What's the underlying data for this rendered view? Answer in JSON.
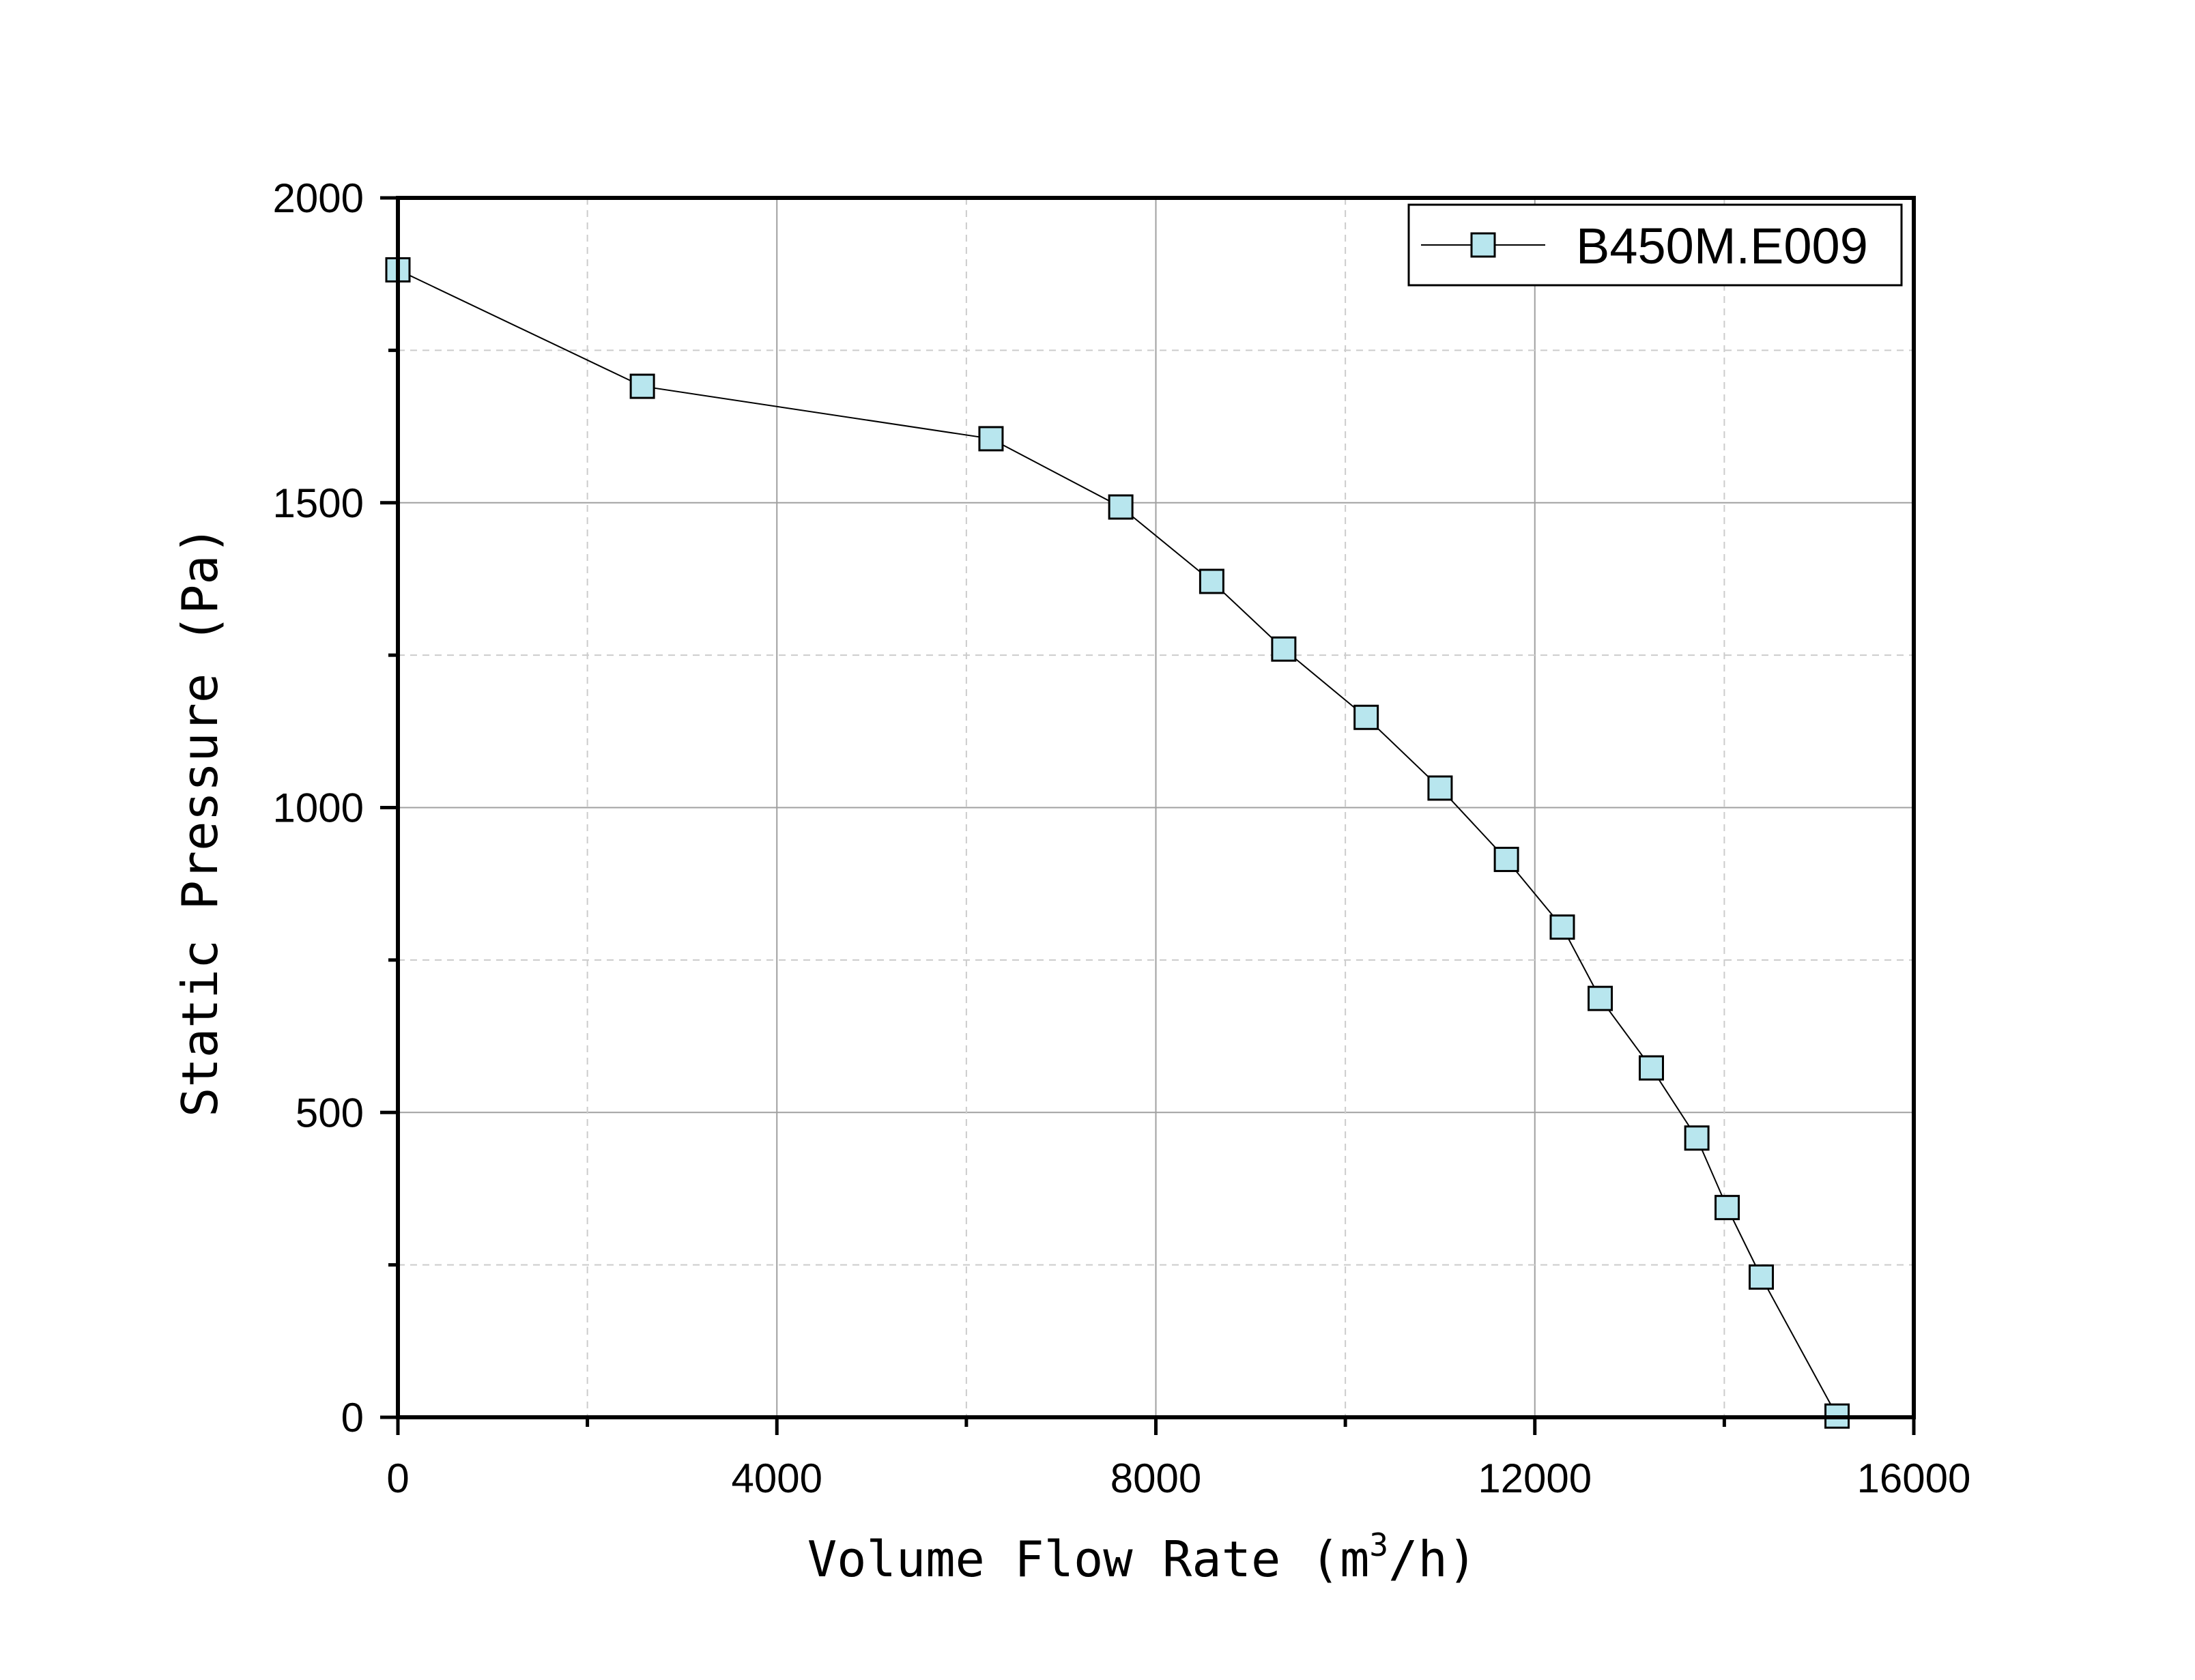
{
  "chart_data": {
    "type": "line",
    "title": "",
    "xlabel": "Volume Flow Rate (m3/h)",
    "xlabel_main": "Volume Flow Rate (m",
    "xlabel_sup": "3",
    "xlabel_tail": "/h)",
    "ylabel": "Static Pressure (Pa)",
    "xlim": [
      0,
      16000
    ],
    "ylim": [
      0,
      2000
    ],
    "xticks": [
      0,
      4000,
      8000,
      12000,
      16000
    ],
    "yticks": [
      0,
      500,
      1000,
      1500,
      2000
    ],
    "x_minor_ticks": [
      2000,
      6000,
      10000,
      14000
    ],
    "y_minor_ticks": [
      250,
      750,
      1250,
      1750
    ],
    "grid": true,
    "legend": {
      "position": "top-right"
    },
    "series": [
      {
        "name": "B450M.E009",
        "marker": "square",
        "marker_fill": "#b8e6ee",
        "line_color": "#000000",
        "x": [
          0,
          2580,
          6260,
          7630,
          8590,
          9350,
          10220,
          11000,
          11700,
          12290,
          12690,
          13230,
          13710,
          14030,
          14390,
          15190
        ],
        "y": [
          1882,
          1691,
          1605,
          1493,
          1371,
          1260,
          1148,
          1032,
          915,
          804,
          687,
          573,
          458,
          344,
          230,
          2
        ]
      }
    ]
  }
}
